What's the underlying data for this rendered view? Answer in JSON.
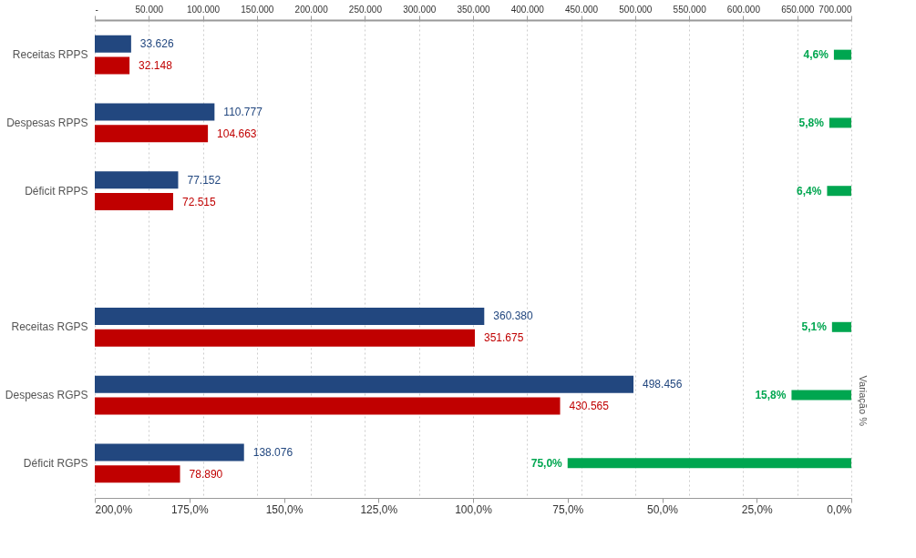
{
  "chart_data": {
    "type": "bar",
    "orientation": "horizontal",
    "grid": "x",
    "x2label": "Variação %",
    "categories": [
      "Receitas RPPS",
      "Despesas RPPS",
      "Déficit RPPS",
      null,
      "Receitas RGPS",
      "Despesas RGPS",
      "Déficit RGPS"
    ],
    "series": [
      {
        "color": "#22477f",
        "values": [
          33626,
          110777,
          77152,
          null,
          360380,
          498456,
          138076
        ],
        "value_labels": [
          "33.626",
          "110.777",
          "77.152",
          null,
          "360.380",
          "498.456",
          "138.076"
        ]
      },
      {
        "color": "#c00000",
        "values": [
          32148,
          104663,
          72515,
          null,
          351675,
          430565,
          78890
        ],
        "value_labels": [
          "32.148",
          "104.663",
          "72.515",
          null,
          "351.675",
          "430.565",
          "78.890"
        ]
      },
      {
        "color": "#00a650",
        "axis": "x2",
        "values": [
          4.6,
          5.8,
          6.4,
          null,
          5.1,
          15.8,
          75.0
        ],
        "value_labels": [
          "4,6%",
          "5,8%",
          "6,4%",
          null,
          "5,1%",
          "15,8%",
          "75,0%"
        ]
      }
    ],
    "xlim": [
      0,
      700000
    ],
    "xticks": [
      {
        "value": 0,
        "label": "-"
      },
      {
        "value": 50000,
        "label": "50.000"
      },
      {
        "value": 100000,
        "label": "100.000"
      },
      {
        "value": 150000,
        "label": "150.000"
      },
      {
        "value": 200000,
        "label": "200.000"
      },
      {
        "value": 250000,
        "label": "250.000"
      },
      {
        "value": 300000,
        "label": "300.000"
      },
      {
        "value": 350000,
        "label": "350.000"
      },
      {
        "value": 400000,
        "label": "400.000"
      },
      {
        "value": 450000,
        "label": "450.000"
      },
      {
        "value": 500000,
        "label": "500.000"
      },
      {
        "value": 550000,
        "label": "550.000"
      },
      {
        "value": 600000,
        "label": "600.000"
      },
      {
        "value": 650000,
        "label": "650.000"
      },
      {
        "value": 700000,
        "label": "700.000"
      }
    ],
    "x2lim": [
      200,
      0
    ],
    "x2ticks": [
      {
        "value": 200,
        "label": "200,0%"
      },
      {
        "value": 175,
        "label": "175,0%"
      },
      {
        "value": 150,
        "label": "150,0%"
      },
      {
        "value": 125,
        "label": "125,0%"
      },
      {
        "value": 100,
        "label": "100,0%"
      },
      {
        "value": 75,
        "label": "75,0%"
      },
      {
        "value": 50,
        "label": "50,0%"
      },
      {
        "value": 25,
        "label": "25,0%"
      },
      {
        "value": 0,
        "label": "0,0%"
      }
    ]
  }
}
